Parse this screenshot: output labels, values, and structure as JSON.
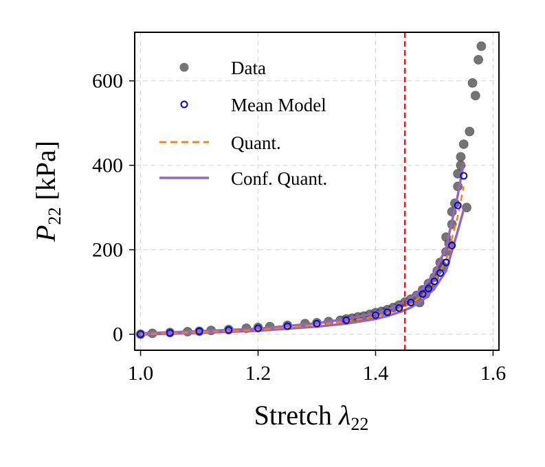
{
  "chart_data": {
    "type": "scatter",
    "xlabel": {
      "main": "Stretch ",
      "symbol": "λ",
      "sub": "22"
    },
    "ylabel": {
      "symbol": "P",
      "sub": "22",
      "unit": " [kPa]"
    },
    "xlim": [
      0.99,
      1.61
    ],
    "ylim": [
      -38,
      715
    ],
    "xticks": [
      1.0,
      1.2,
      1.4,
      1.6
    ],
    "xtick_labels": [
      "1.0",
      "1.2",
      "1.4",
      "1.6"
    ],
    "yticks": [
      0,
      200,
      400,
      600
    ],
    "ytick_labels": [
      "0",
      "200",
      "400",
      "600"
    ],
    "grid": true,
    "legend_position": "top-left",
    "vline": {
      "x": 1.45,
      "color": "#e31a1c"
    },
    "colors": {
      "data": "#4d4d4d",
      "mean_model": "#0000ee",
      "quant": "#ff7f0e",
      "conf_quant": "#9467bd"
    },
    "series": [
      {
        "name": "Data",
        "kind": "scatter",
        "x": [
          1.0,
          1.02,
          1.05,
          1.08,
          1.1,
          1.12,
          1.15,
          1.18,
          1.2,
          1.22,
          1.25,
          1.28,
          1.3,
          1.32,
          1.34,
          1.35,
          1.36,
          1.37,
          1.38,
          1.39,
          1.4,
          1.41,
          1.42,
          1.43,
          1.44,
          1.45,
          1.46,
          1.47,
          1.475,
          1.48,
          1.485,
          1.49,
          1.495,
          1.5,
          1.505,
          1.51,
          1.515,
          1.52,
          1.52,
          1.525,
          1.53,
          1.53,
          1.535,
          1.54,
          1.54,
          1.545,
          1.545,
          1.55,
          1.555,
          1.56,
          1.565,
          1.57,
          1.575,
          1.58
        ],
        "y": [
          0,
          2,
          4,
          6,
          7,
          9,
          11,
          14,
          16,
          18,
          21,
          25,
          27,
          30,
          33,
          36,
          38,
          41,
          43,
          47,
          51,
          54,
          58,
          63,
          69,
          76,
          83,
          92,
          75,
          105,
          95,
          120,
          112,
          135,
          150,
          170,
          160,
          195,
          230,
          215,
          260,
          290,
          310,
          350,
          380,
          400,
          420,
          450,
          300,
          480,
          595,
          565,
          650,
          682
        ]
      },
      {
        "name": "Mean Model",
        "kind": "scatter",
        "x": [
          1.0,
          1.05,
          1.1,
          1.15,
          1.2,
          1.25,
          1.3,
          1.35,
          1.4,
          1.42,
          1.44,
          1.46,
          1.48,
          1.49,
          1.5,
          1.51,
          1.52,
          1.53,
          1.54,
          1.55
        ],
        "y": [
          0,
          3,
          7,
          10,
          14,
          19,
          25,
          33,
          45,
          52,
          62,
          75,
          95,
          108,
          125,
          145,
          170,
          210,
          305,
          375
        ]
      },
      {
        "name": "Quant.",
        "kind": "dashed-line",
        "x": [
          1.0,
          1.1,
          1.2,
          1.3,
          1.35,
          1.4,
          1.42,
          1.44,
          1.46,
          1.48,
          1.5,
          1.52,
          1.54,
          1.55
        ],
        "y": [
          0,
          5,
          10,
          22,
          30,
          42,
          50,
          60,
          72,
          92,
          125,
          175,
          280,
          350
        ]
      },
      {
        "name": "Conf. Quant.",
        "kind": "band",
        "x": [
          1.0,
          1.1,
          1.2,
          1.3,
          1.35,
          1.4,
          1.42,
          1.44,
          1.46,
          1.48,
          1.5,
          1.52,
          1.54,
          1.55
        ],
        "upper": [
          2,
          7,
          13,
          26,
          36,
          50,
          58,
          70,
          85,
          108,
          145,
          205,
          330,
          405
        ],
        "lower": [
          -1,
          3,
          8,
          18,
          25,
          36,
          43,
          52,
          63,
          80,
          108,
          150,
          245,
          295
        ]
      }
    ],
    "legend": [
      "Data",
      "Mean Model",
      "Quant.",
      "Conf. Quant."
    ]
  }
}
